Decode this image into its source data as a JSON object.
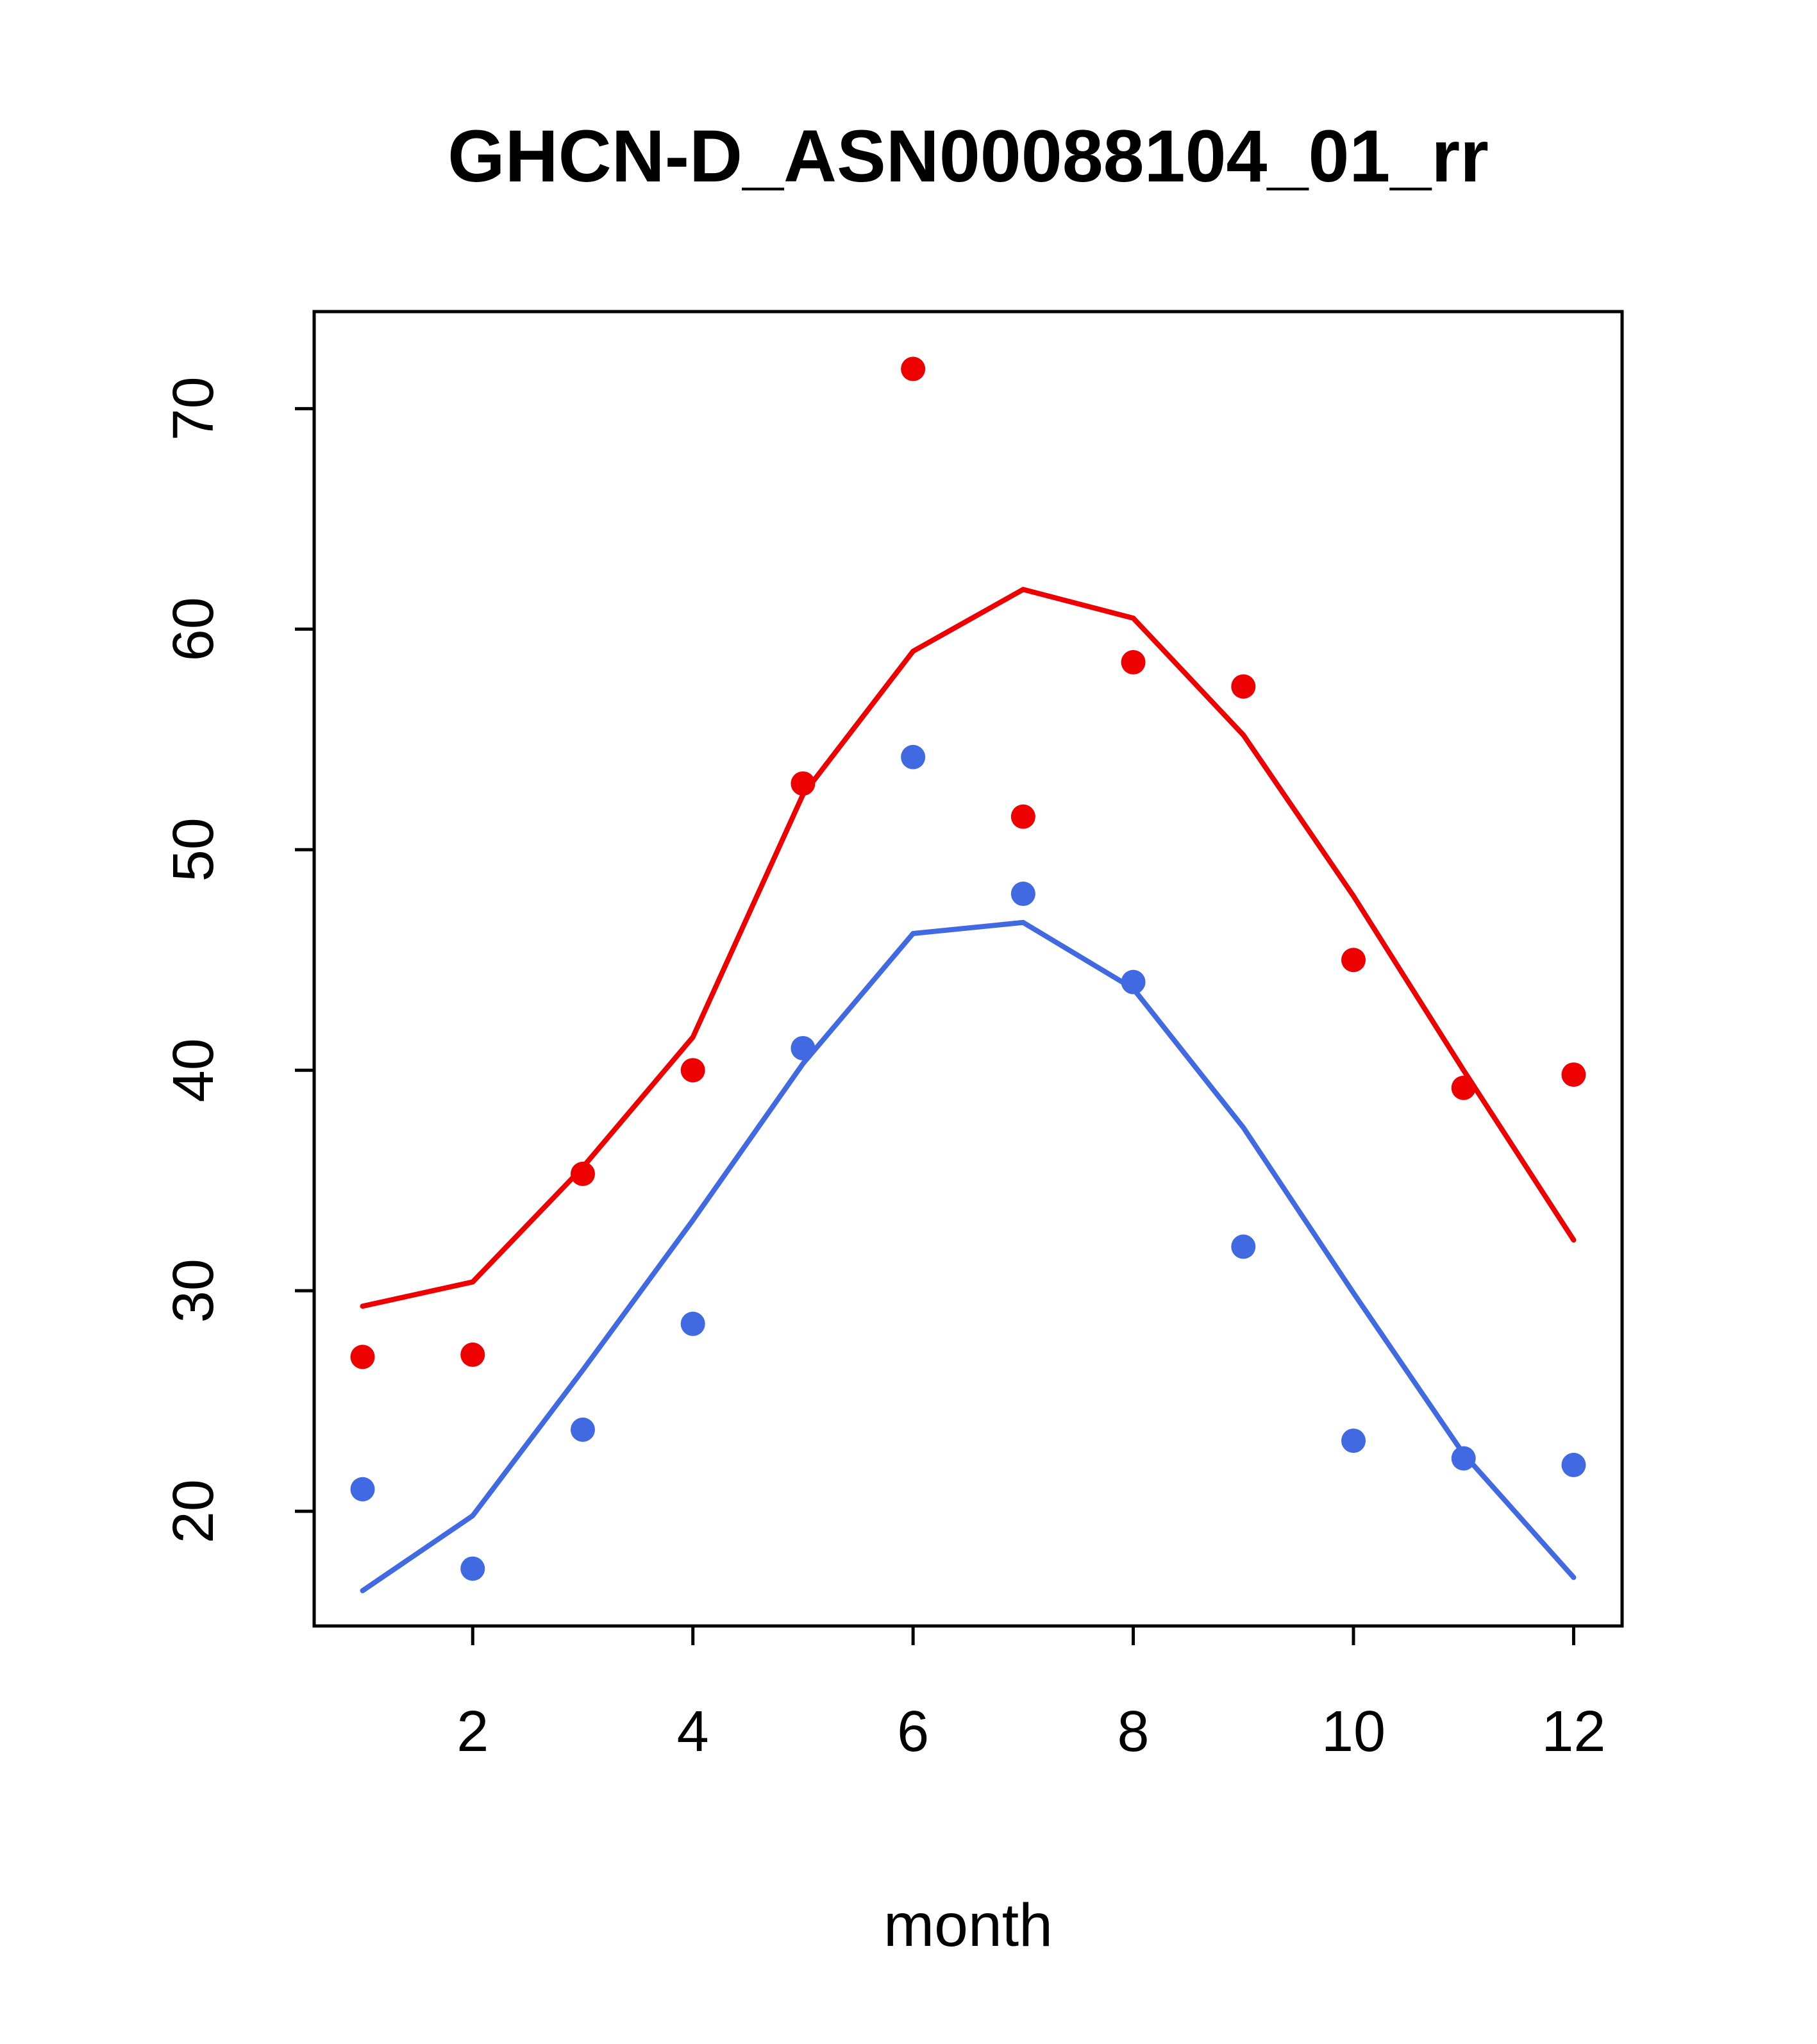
{
  "figure": {
    "title": "GHCN-D_ASN00088104_01_rr",
    "xlabel": "month"
  },
  "chart_data": {
    "type": "line",
    "title": "GHCN-D_ASN00088104_01_rr",
    "xlabel": "month",
    "ylabel": "",
    "x": [
      1,
      2,
      3,
      4,
      5,
      6,
      7,
      8,
      9,
      10,
      11,
      12
    ],
    "xticks": [
      2,
      4,
      6,
      8,
      10,
      12
    ],
    "yticks": [
      20,
      30,
      40,
      50,
      60,
      70
    ],
    "xlim": [
      0.56,
      12.44
    ],
    "ylim": [
      14.8,
      74.4
    ],
    "grid": false,
    "legend": "none",
    "colors": {
      "red": "#ee0000",
      "blue": "#4169e1",
      "axis": "#000000",
      "background": "#ffffff"
    },
    "series": [
      {
        "name": "red-line",
        "type": "line",
        "color": "#ee0000",
        "values": [
          29.3,
          30.4,
          35.6,
          41.5,
          52.5,
          59.0,
          61.8,
          60.5,
          55.2,
          47.9,
          40.0,
          32.3
        ]
      },
      {
        "name": "blue-line",
        "type": "line",
        "color": "#4169e1",
        "values": [
          16.4,
          19.8,
          26.4,
          33.2,
          40.3,
          46.2,
          46.7,
          43.7,
          37.4,
          29.9,
          22.6,
          17.0
        ]
      },
      {
        "name": "red-points",
        "type": "scatter",
        "color": "#ee0000",
        "values": [
          27.0,
          27.1,
          35.3,
          40.0,
          53.0,
          71.8,
          51.5,
          58.5,
          57.4,
          45.0,
          39.2,
          39.8
        ]
      },
      {
        "name": "blue-points",
        "type": "scatter",
        "color": "#4169e1",
        "values": [
          21.0,
          17.4,
          23.7,
          28.5,
          41.0,
          54.2,
          48.0,
          44.0,
          32.0,
          23.2,
          22.4,
          22.1
        ]
      }
    ]
  }
}
